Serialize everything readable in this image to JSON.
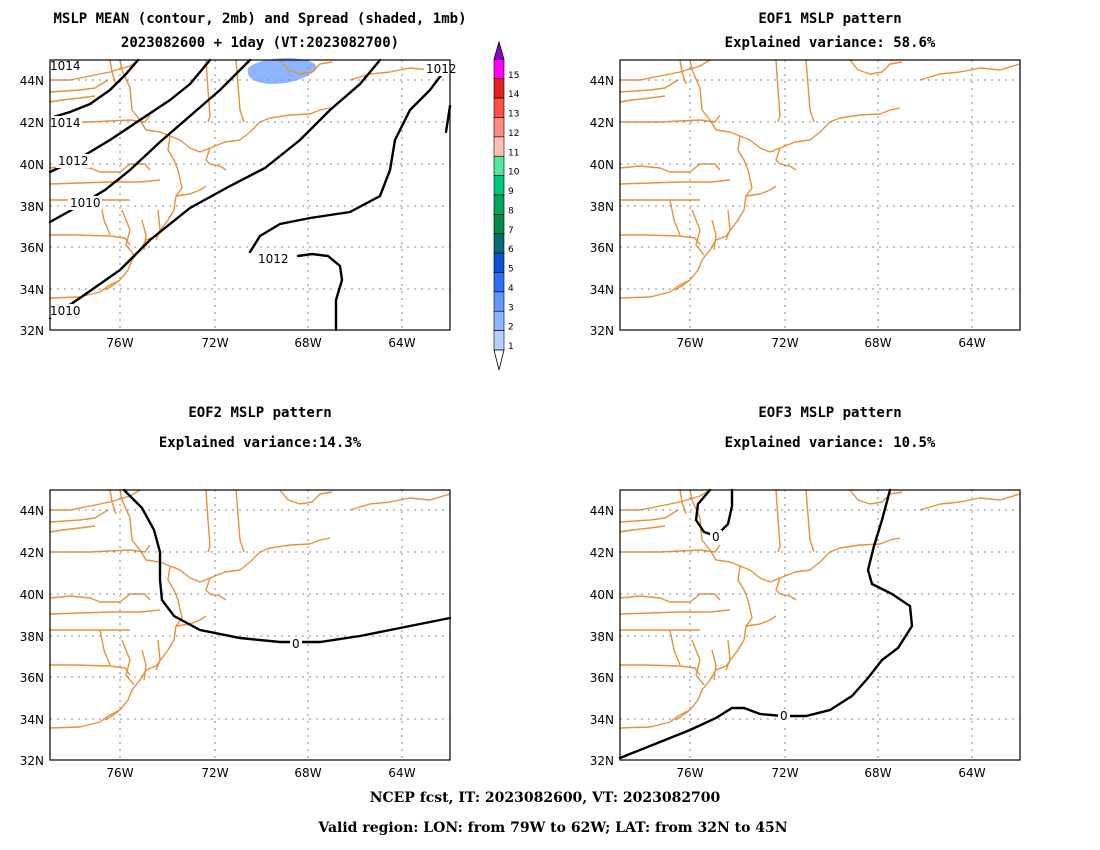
{
  "panels": [
    {
      "key": "mean",
      "title1": "MSLP MEAN (contour, 2mb) and Spread (shaded, 1mb)",
      "title2": "2023082600 + 1day (VT:2023082700)",
      "contour_labels": [
        "1014",
        "1012",
        "1010",
        "1010",
        "1012",
        "1012",
        "1014"
      ]
    },
    {
      "key": "eof1",
      "title1": "EOF1 MSLP pattern",
      "title2": "Explained variance: 58.6%",
      "contour_labels": []
    },
    {
      "key": "eof2",
      "title1": "EOF2 MSLP pattern",
      "title2": "Explained variance:14.3%",
      "contour_labels": [
        "0"
      ]
    },
    {
      "key": "eof3",
      "title1": "EOF3 MSLP pattern",
      "title2": "Explained variance: 10.5%",
      "contour_labels": [
        "0",
        "0"
      ]
    }
  ],
  "axes": {
    "lon_ticks": [
      "76W",
      "72W",
      "68W",
      "64W"
    ],
    "lat_ticks": [
      "44N",
      "42N",
      "40N",
      "38N",
      "36N",
      "34N",
      "32N"
    ]
  },
  "colorbar": {
    "labels": [
      "1",
      "2",
      "3",
      "4",
      "5",
      "6",
      "7",
      "8",
      "9",
      "10",
      "11",
      "12",
      "13",
      "14",
      "15"
    ],
    "colors": [
      "#b4d2ff",
      "#8cb4ff",
      "#6496ff",
      "#2d6eff",
      "#0a50d2",
      "#006e6e",
      "#008c46",
      "#00a55a",
      "#00c878",
      "#50e6a0",
      "#ffbeb4",
      "#ff8c82",
      "#ff5046",
      "#e61e1e",
      "#ff00ff",
      "#8c00d2"
    ]
  },
  "footer": {
    "line1": "NCEP fcst, IT: 2023082600, VT: 2023082700",
    "line2": "Valid region: LON: from 79W to 62W; LAT: from 32N to 45N"
  },
  "colors": {
    "coast": "#e8903a",
    "contour": "#000000",
    "spread": "#8cb4ff"
  }
}
